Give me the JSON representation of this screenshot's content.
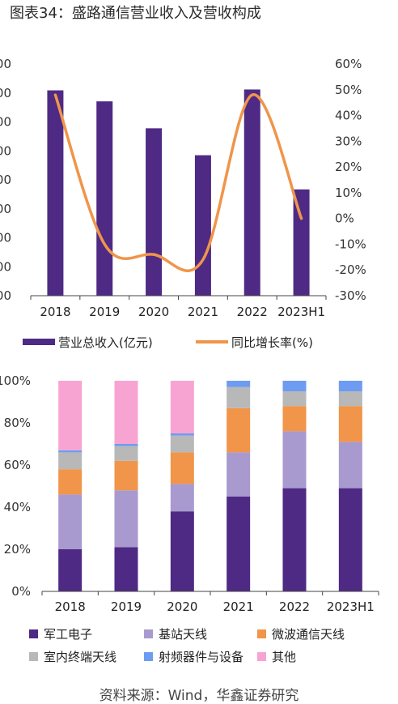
{
  "title": "图表34：盛路通信营业收入及营收构成",
  "source": "资料来源：Wind，华鑫证券研究",
  "colors": {
    "revenue_bar": "#4E2A84",
    "growth_line": "#F0954A",
    "seg_military": "#4E2A84",
    "seg_base_station": "#A89ACF",
    "seg_microwave": "#F0954A",
    "seg_indoor": "#B8B8B8",
    "seg_rf": "#6E9CF2",
    "seg_other": "#F7A4D2"
  },
  "chart_data": [
    {
      "type": "bar",
      "categories": [
        "2018",
        "2019",
        "2020",
        "2021",
        "2022",
        "2023H1"
      ],
      "left_tick_labels": [
        "00",
        "00",
        "00",
        "00",
        "00",
        "00",
        "00",
        "00",
        "00"
      ],
      "left_axis_steps": 8,
      "right_tick_labels": [
        "60%",
        "50%",
        "40%",
        "30%",
        "20%",
        "10%",
        "0%",
        "-10%",
        "-20%",
        "-30%"
      ],
      "ylim_right": [
        -0.3,
        0.6
      ],
      "series": [
        {
          "name": "营业总收入(亿元)",
          "type": "bar",
          "values": [
            7.09,
            6.71,
            5.78,
            4.85,
            7.12,
            3.67
          ]
        },
        {
          "name": "同比增长率(%)",
          "type": "line",
          "axis": "right",
          "values": [
            0.48,
            -0.1,
            -0.14,
            -0.16,
            0.48,
            0.0
          ]
        }
      ],
      "legend_position": "bottom"
    },
    {
      "type": "bar",
      "stacked": true,
      "categories": [
        "2018",
        "2019",
        "2020",
        "2021",
        "2022",
        "2023H1"
      ],
      "ylim": [
        0,
        1
      ],
      "y_tick_labels": [
        "100%",
        "80%",
        "60%",
        "40%",
        "20%",
        "0%"
      ],
      "series": [
        {
          "name": "军工电子",
          "values": [
            0.2,
            0.21,
            0.38,
            0.45,
            0.49,
            0.49
          ]
        },
        {
          "name": "基站天线",
          "values": [
            0.26,
            0.27,
            0.13,
            0.21,
            0.27,
            0.22
          ]
        },
        {
          "name": "微波通信天线",
          "values": [
            0.12,
            0.14,
            0.15,
            0.21,
            0.12,
            0.17
          ]
        },
        {
          "name": "室内终端天线",
          "values": [
            0.08,
            0.07,
            0.08,
            0.1,
            0.07,
            0.07
          ]
        },
        {
          "name": "射频器件与设备",
          "values": [
            0.01,
            0.01,
            0.01,
            0.03,
            0.05,
            0.05
          ]
        },
        {
          "name": "其他",
          "values": [
            0.33,
            0.3,
            0.25,
            0.0,
            0.0,
            0.0
          ]
        }
      ],
      "legend_position": "bottom"
    }
  ]
}
